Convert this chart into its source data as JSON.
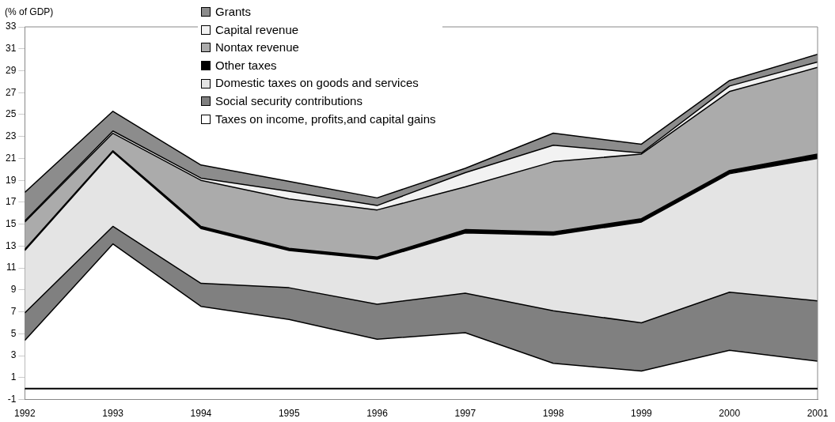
{
  "chart_data": {
    "type": "area",
    "stacked": true,
    "ylabel": "(% of GDP)",
    "x": [
      1992,
      1993,
      1994,
      1995,
      1996,
      1997,
      1998,
      1999,
      2000,
      2001
    ],
    "xlim": [
      1992,
      2001
    ],
    "xticks": [
      1992,
      1993,
      1994,
      1995,
      1996,
      1997,
      1998,
      1999,
      2000,
      2001
    ],
    "ylim": [
      -1,
      33
    ],
    "yticks": [
      -1,
      1,
      3,
      5,
      7,
      9,
      11,
      13,
      15,
      17,
      19,
      21,
      23,
      25,
      27,
      29,
      31,
      33
    ],
    "grid": false,
    "legend": "top",
    "marker": "none",
    "series": [
      {
        "name": "Taxes on income, profits,and capital gains",
        "color": "#ffffff",
        "values": [
          4.4,
          13.2,
          7.5,
          6.3,
          4.5,
          5.1,
          2.3,
          1.6,
          3.5,
          2.5
        ]
      },
      {
        "name": "Social security contributions",
        "color": "#808080",
        "values": [
          2.5,
          1.6,
          2.1,
          2.9,
          3.2,
          3.6,
          4.8,
          4.4,
          5.3,
          5.5
        ]
      },
      {
        "name": "Domestic taxes on goods and services",
        "color": "#e4e4e4",
        "values": [
          5.7,
          6.8,
          5.0,
          3.4,
          4.1,
          5.5,
          6.9,
          9.2,
          10.8,
          13.0
        ]
      },
      {
        "name": "Other taxes",
        "color": "#000000",
        "values": [
          0.1,
          0.1,
          0.2,
          0.2,
          0.2,
          0.3,
          0.3,
          0.3,
          0.3,
          0.4
        ]
      },
      {
        "name": "Nontax revenue",
        "color": "#ababab",
        "values": [
          2.5,
          1.6,
          4.2,
          4.5,
          4.3,
          3.9,
          6.4,
          5.9,
          7.2,
          7.9
        ]
      },
      {
        "name": "Capital revenue",
        "color": "#f2f2f2",
        "values": [
          0.1,
          0.2,
          0.2,
          0.7,
          0.4,
          1.3,
          1.5,
          0.1,
          0.5,
          0.5
        ]
      },
      {
        "name": "Grants",
        "color": "#8c8c8c",
        "values": [
          2.6,
          1.8,
          1.2,
          0.9,
          0.7,
          0.4,
          1.1,
          0.8,
          0.5,
          0.7
        ]
      }
    ]
  }
}
